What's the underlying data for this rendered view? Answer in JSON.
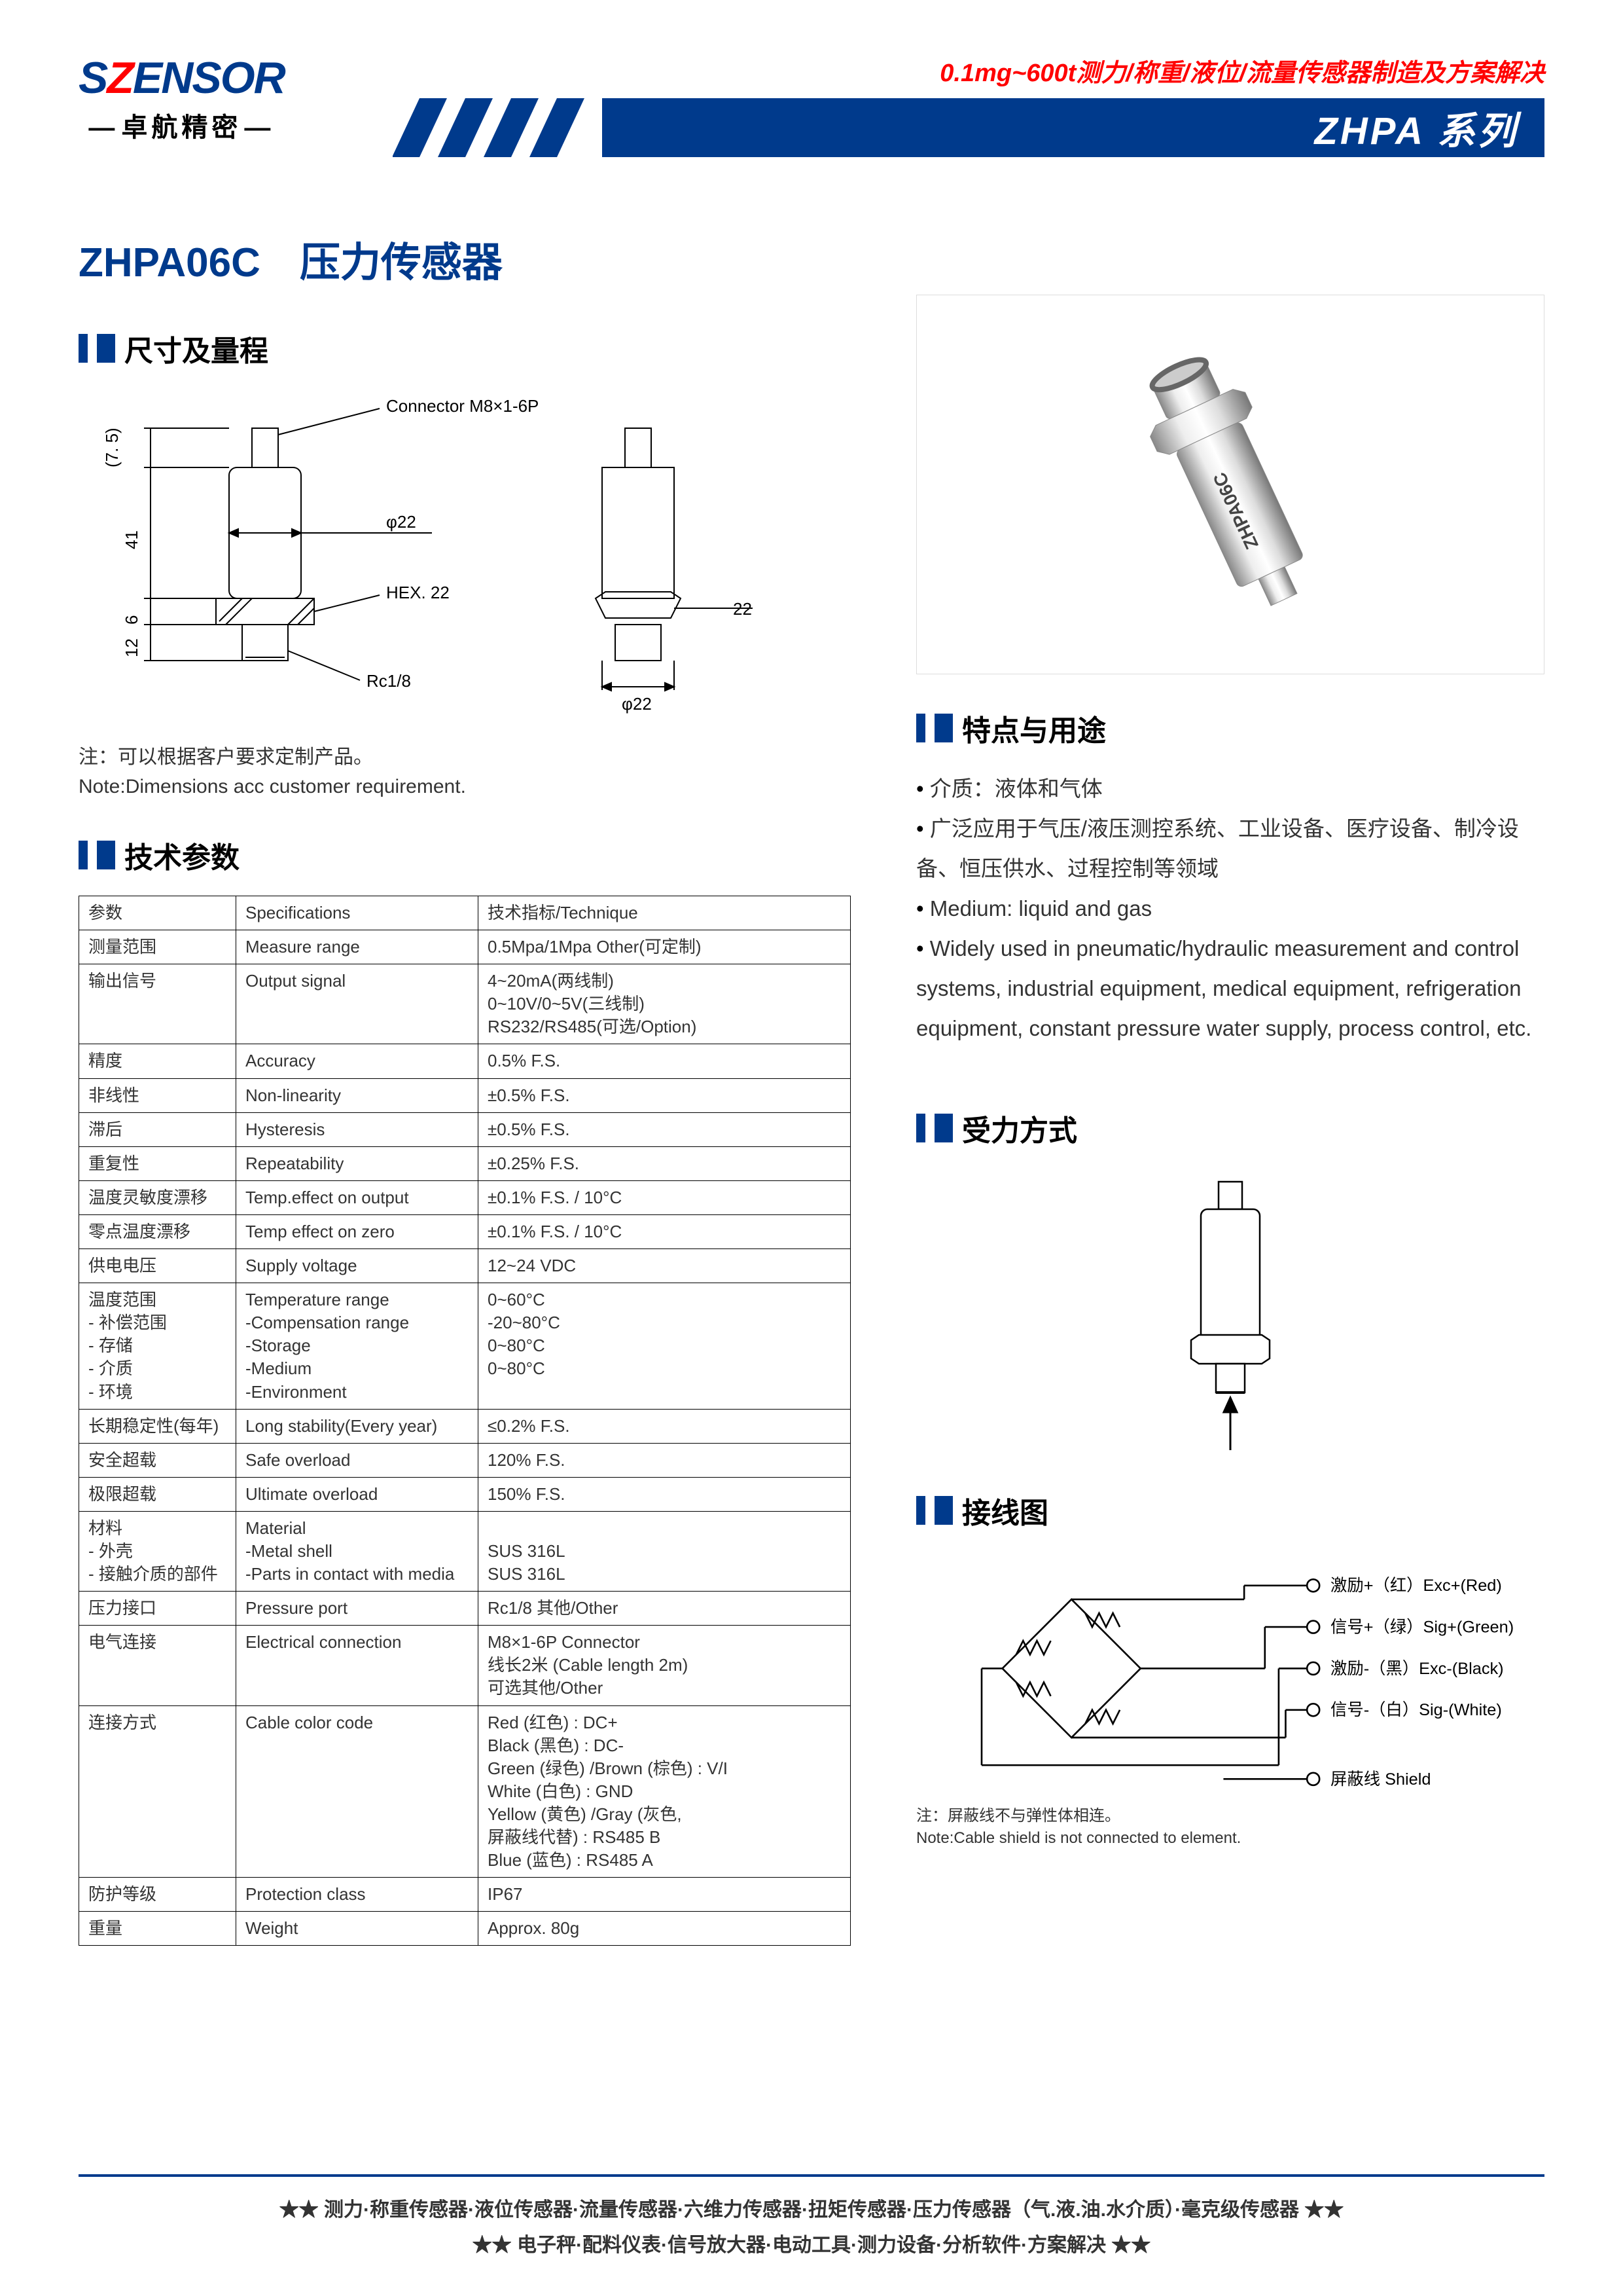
{
  "header": {
    "logo_s1": "S",
    "logo_s2": "Z",
    "logo_rest": "ENSOR",
    "logo_sub": "卓航精密",
    "tagline": "0.1mg~600t测力/称重/液位/流量传感器制造及方案解决",
    "series": "ZHPA 系列"
  },
  "title": {
    "model": "ZHPA06C",
    "name": "压力传感器"
  },
  "sections": {
    "dims": "尺寸及量程",
    "specs": "技术参数",
    "features": "特点与用途",
    "force": "受力方式",
    "wiring": "接线图"
  },
  "dim_diagram": {
    "connector_label": "Connector M8×1-6P",
    "body_dia": "φ22",
    "hex_label": "HEX. 22",
    "hex_dim": "22",
    "thread_label": "Rc1/8",
    "h_top": "(7. 5)",
    "h_body": "41",
    "h_hex": "6",
    "h_thread": "12",
    "base_dia": "φ22",
    "note_cn": "注：可以根据客户要求定制产品。",
    "note_en": "Note:Dimensions acc customer requirement."
  },
  "spec_table": {
    "header": [
      "参数",
      "Specifications",
      "技术指标/Technique"
    ],
    "rows": [
      {
        "cn": "测量范围",
        "en": "Measure range",
        "val": "0.5Mpa/1Mpa  Other(可定制)"
      },
      {
        "cn": "输出信号",
        "en": "Output signal",
        "val": "4~20mA(两线制)\n0~10V/0~5V(三线制)\nRS232/RS485(可选/Option)"
      },
      {
        "cn": "精度",
        "en": "Accuracy",
        "val": "0.5% F.S."
      },
      {
        "cn": "非线性",
        "en": "Non-linearity",
        "val": "±0.5% F.S."
      },
      {
        "cn": "滞后",
        "en": "Hysteresis",
        "val": "±0.5% F.S."
      },
      {
        "cn": "重复性",
        "en": "Repeatability",
        "val": "±0.25% F.S."
      },
      {
        "cn": "温度灵敏度漂移",
        "en": "Temp.effect on output",
        "val": "±0.1% F.S. / 10°C"
      },
      {
        "cn": "零点温度漂移",
        "en": "Temp effect on zero",
        "val": "±0.1% F.S. / 10°C"
      },
      {
        "cn": "供电电压",
        "en": "Supply voltage",
        "val": "12~24 VDC"
      },
      {
        "cn": "温度范围\n - 补偿范围\n - 存储\n - 介质\n - 环境",
        "en": "Temperature range\n-Compensation range\n-Storage\n-Medium\n-Environment",
        "val": "0~60°C\n-20~80°C\n0~80°C\n0~80°C"
      },
      {
        "cn": "长期稳定性(每年)",
        "en": "Long stability(Every year)",
        "val": "≤0.2% F.S."
      },
      {
        "cn": "安全超载",
        "en": "Safe overload",
        "val": "120% F.S."
      },
      {
        "cn": "极限超载",
        "en": "Ultimate overload",
        "val": "150% F.S."
      },
      {
        "cn": "材料\n - 外壳\n - 接触介质的部件",
        "en": "Material\n-Metal shell\n-Parts in contact with media",
        "val": "\nSUS 316L\nSUS 316L"
      },
      {
        "cn": "压力接口",
        "en": "Pressure port",
        "val": "Rc1/8  其他/Other"
      },
      {
        "cn": "电气连接",
        "en": "Electrical connection",
        "val": "M8×1-6P Connector\n线长2米 (Cable length 2m)\n可选其他/Other"
      },
      {
        "cn": "连接方式",
        "en": "Cable color code",
        "val": "Red (红色) : DC+\nBlack (黑色) : DC-\nGreen (绿色) /Brown (棕色) : V/I\nWhite (白色) : GND\nYellow (黄色) /Gray (灰色,\n屏蔽线代替) : RS485 B\nBlue (蓝色) : RS485 A"
      },
      {
        "cn": "防护等级",
        "en": "Protection class",
        "val": "IP67"
      },
      {
        "cn": "重量",
        "en": "Weight",
        "val": "Approx. 80g"
      }
    ]
  },
  "product_photo_label": "ZHPA06C",
  "features": [
    "介质：液体和气体",
    "广泛应用于气压/液压测控系统、工业设备、医疗设备、制冷设备、恒压供水、过程控制等领域",
    "Medium: liquid and gas",
    "Widely used in pneumatic/hydraulic measurement and control systems, industrial equipment, medical equipment, refrigeration equipment, constant pressure water supply, process control, etc."
  ],
  "wiring": {
    "labels": [
      "激励+（红）Exc+(Red)",
      "信号+（绿）Sig+(Green)",
      "激励-（黑）Exc-(Black)",
      "信号-（白）Sig-(White)",
      "屏蔽线  Shield"
    ],
    "note_cn": "注：屏蔽线不与弹性体相连。",
    "note_en": "Note:Cable shield is not connected to element."
  },
  "footer": {
    "line1": "★★  测力·称重传感器·液位传感器·流量传感器·六维力传感器·扭矩传感器·压力传感器（气.液.油.水介质）·毫克级传感器  ★★",
    "line2": "★★  电子秤·配料仪表·信号放大器·电动工具·测力设备·分析软件·方案解决  ★★"
  },
  "colors": {
    "blue": "#003a8c",
    "red": "#ff0000",
    "black": "#000000"
  }
}
